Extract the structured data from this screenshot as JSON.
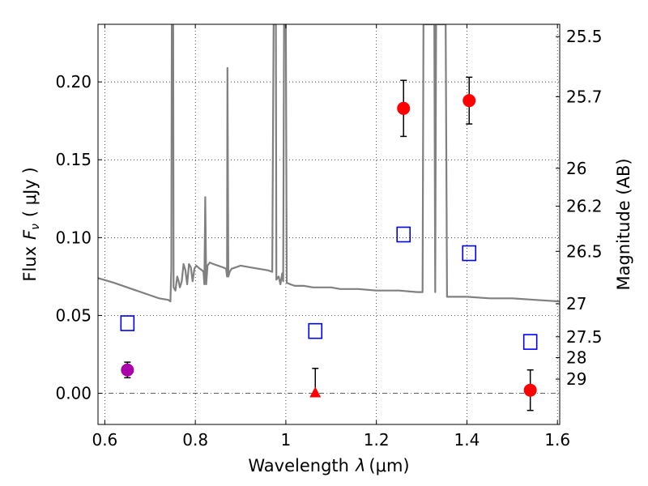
{
  "chart_data": {
    "type": "scatter",
    "xlabel": "Wavelength",
    "xlabel_symbol": "λ",
    "xlabel_unit": "(μm)",
    "ylabel": "Flux",
    "ylabel_symbol": "F",
    "ylabel_subscript": "ν",
    "ylabel_unit": "( μJy )",
    "y2label": "Magnitude (AB)",
    "xlim": [
      0.585,
      1.605
    ],
    "ylim": [
      -0.02,
      0.237
    ],
    "grid": true,
    "x_ticks": [
      0.6,
      0.8,
      1.0,
      1.2,
      1.4,
      1.6
    ],
    "x_tick_labels": [
      "0.6",
      "0.8",
      "1",
      "1.2",
      "1.4",
      "1.6"
    ],
    "y_ticks": [
      0.0,
      0.05,
      0.1,
      0.15,
      0.2
    ],
    "y_tick_labels": [
      "0.00",
      "0.05",
      "0.10",
      "0.15",
      "0.20"
    ],
    "mag_ticks": [
      {
        "flux": 0.2291,
        "label": "25.5"
      },
      {
        "flux": 0.1905,
        "label": "25.7"
      },
      {
        "flux": 0.1445,
        "label": "26"
      },
      {
        "flux": 0.1202,
        "label": "26.2"
      },
      {
        "flux": 0.0912,
        "label": "26.5"
      },
      {
        "flux": 0.0575,
        "label": "27"
      },
      {
        "flux": 0.0363,
        "label": "27.5"
      },
      {
        "flux": 0.0229,
        "label": "28"
      },
      {
        "flux": 0.0091,
        "label": "29"
      }
    ],
    "zero_line": 0.0,
    "series": [
      {
        "kind": "points",
        "marker": "circle",
        "color": "#ff0000",
        "points": [
          {
            "x": 1.26,
            "y": 0.183,
            "err": 0.018
          },
          {
            "x": 1.405,
            "y": 0.188,
            "err": 0.015
          },
          {
            "x": 1.54,
            "y": 0.002,
            "err": 0.013
          }
        ]
      },
      {
        "kind": "points",
        "marker": "circle",
        "color": "#aa00aa",
        "points": [
          {
            "x": 0.65,
            "y": 0.015,
            "err": 0.005
          }
        ]
      },
      {
        "kind": "points",
        "marker": "triangle",
        "color": "#ff0000",
        "points": [
          {
            "x": 1.065,
            "y": 0.0,
            "err_up": 0.016,
            "err_down": 0.0
          }
        ]
      },
      {
        "kind": "points",
        "marker": "open-square",
        "color": "#0000ff",
        "points": [
          {
            "x": 0.65,
            "y": 0.045
          },
          {
            "x": 1.065,
            "y": 0.04
          },
          {
            "x": 1.26,
            "y": 0.102
          },
          {
            "x": 1.405,
            "y": 0.09
          },
          {
            "x": 1.54,
            "y": 0.033
          }
        ]
      },
      {
        "kind": "line",
        "color": "#808080",
        "points": [
          [
            0.585,
            0.074
          ],
          [
            0.62,
            0.071
          ],
          [
            0.66,
            0.067
          ],
          [
            0.7,
            0.063
          ],
          [
            0.72,
            0.061
          ],
          [
            0.74,
            0.06
          ],
          [
            0.745,
            0.059
          ],
          [
            0.747,
            0.08
          ],
          [
            0.748,
            0.237
          ],
          [
            0.751,
            0.237
          ],
          [
            0.752,
            0.068
          ],
          [
            0.756,
            0.066
          ],
          [
            0.76,
            0.075
          ],
          [
            0.763,
            0.072
          ],
          [
            0.766,
            0.068
          ],
          [
            0.77,
            0.072
          ],
          [
            0.774,
            0.083
          ],
          [
            0.778,
            0.079
          ],
          [
            0.782,
            0.07
          ],
          [
            0.786,
            0.083
          ],
          [
            0.79,
            0.081
          ],
          [
            0.794,
            0.072
          ],
          [
            0.798,
            0.08
          ],
          [
            0.802,
            0.082
          ],
          [
            0.806,
            0.081
          ],
          [
            0.81,
            0.08
          ],
          [
            0.815,
            0.079
          ],
          [
            0.818,
            0.078
          ],
          [
            0.82,
            0.07
          ],
          [
            0.822,
            0.126
          ],
          [
            0.824,
            0.07
          ],
          [
            0.827,
            0.082
          ],
          [
            0.832,
            0.084
          ],
          [
            0.84,
            0.083
          ],
          [
            0.85,
            0.082
          ],
          [
            0.86,
            0.081
          ],
          [
            0.868,
            0.08
          ],
          [
            0.87,
            0.075
          ],
          [
            0.871,
            0.209
          ],
          [
            0.873,
            0.075
          ],
          [
            0.876,
            0.078
          ],
          [
            0.88,
            0.08
          ],
          [
            0.89,
            0.081
          ],
          [
            0.9,
            0.082
          ],
          [
            0.92,
            0.081
          ],
          [
            0.94,
            0.08
          ],
          [
            0.96,
            0.079
          ],
          [
            0.97,
            0.078
          ],
          [
            0.973,
            0.237
          ],
          [
            0.978,
            0.237
          ],
          [
            0.979,
            0.073
          ],
          [
            0.984,
            0.075
          ],
          [
            0.988,
            0.07
          ],
          [
            0.992,
            0.077
          ],
          [
            0.994,
            0.072
          ],
          [
            0.996,
            0.237
          ],
          [
            1.0,
            0.237
          ],
          [
            1.002,
            0.071
          ],
          [
            1.01,
            0.07
          ],
          [
            1.02,
            0.069
          ],
          [
            1.04,
            0.069
          ],
          [
            1.06,
            0.068
          ],
          [
            1.08,
            0.068
          ],
          [
            1.1,
            0.068
          ],
          [
            1.12,
            0.067
          ],
          [
            1.16,
            0.067
          ],
          [
            1.2,
            0.066
          ],
          [
            1.25,
            0.066
          ],
          [
            1.29,
            0.065
          ],
          [
            1.302,
            0.065
          ],
          [
            1.304,
            0.237
          ],
          [
            1.328,
            0.237
          ],
          [
            1.33,
            0.065
          ],
          [
            1.332,
            0.237
          ],
          [
            1.342,
            0.237
          ],
          [
            1.353,
            0.237
          ],
          [
            1.356,
            0.062
          ],
          [
            1.36,
            0.062
          ],
          [
            1.4,
            0.062
          ],
          [
            1.45,
            0.061
          ],
          [
            1.5,
            0.061
          ],
          [
            1.55,
            0.06
          ],
          [
            1.605,
            0.059
          ]
        ]
      }
    ]
  }
}
